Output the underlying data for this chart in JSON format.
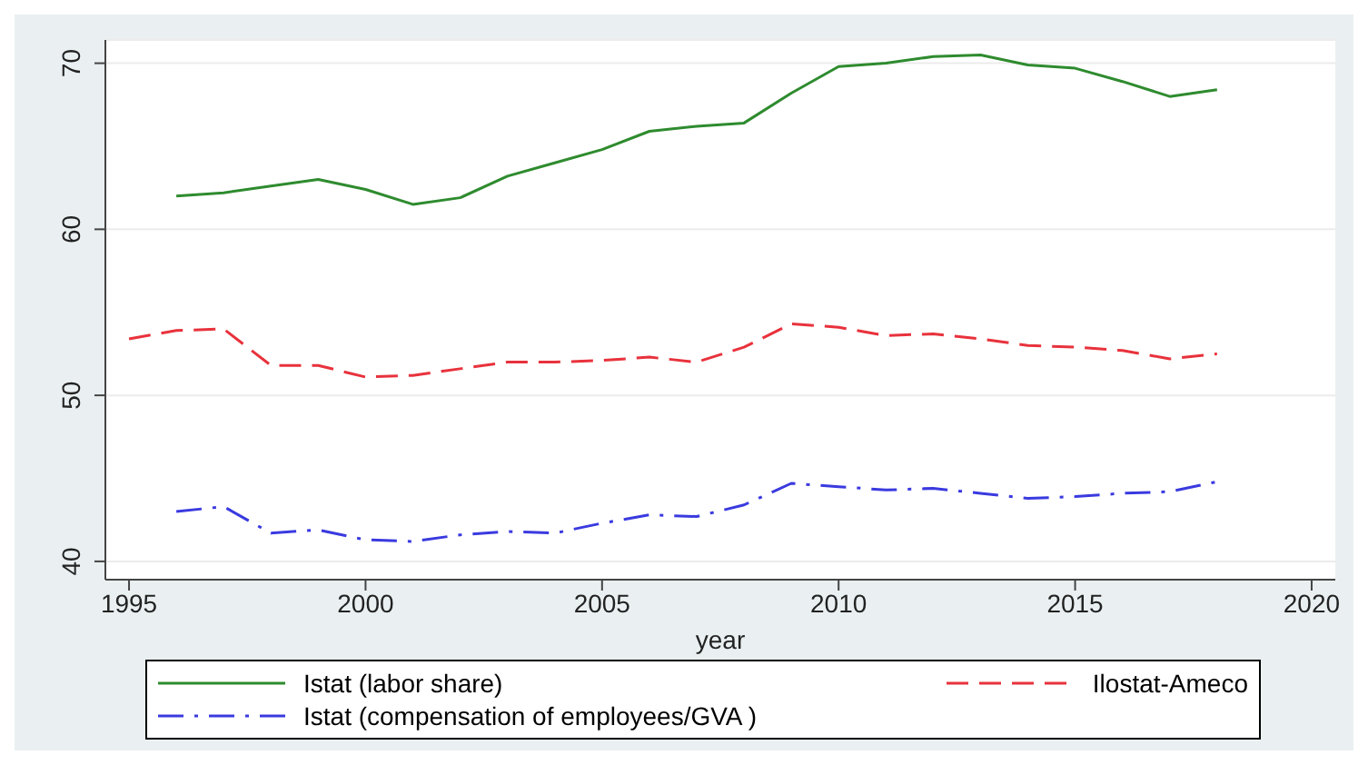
{
  "chart_data": {
    "type": "line",
    "xlabel": "year",
    "x": [
      1995,
      1996,
      1997,
      1998,
      1999,
      2000,
      2001,
      2002,
      2003,
      2004,
      2005,
      2006,
      2007,
      2008,
      2009,
      2010,
      2011,
      2012,
      2013,
      2014,
      2015,
      2016,
      2017,
      2018
    ],
    "series": [
      {
        "name": "Istat (labor share)",
        "color": "#2e8b2e",
        "line_style": "solid",
        "values": [
          null,
          62.0,
          62.2,
          62.6,
          63.0,
          62.4,
          61.5,
          61.9,
          63.2,
          64.0,
          64.8,
          65.9,
          66.2,
          66.4,
          68.2,
          69.8,
          70.0,
          70.4,
          70.5,
          69.9,
          69.7,
          68.9,
          68.0,
          68.4
        ]
      },
      {
        "name": "Ilostat-Ameco",
        "color": "#e8323c",
        "line_style": "dashed",
        "values": [
          53.4,
          53.9,
          54.0,
          51.8,
          51.8,
          51.1,
          51.2,
          51.6,
          52.0,
          52.0,
          52.1,
          52.3,
          52.0,
          52.9,
          54.3,
          54.1,
          53.6,
          53.7,
          53.4,
          53.0,
          52.9,
          52.7,
          52.2,
          52.5
        ]
      },
      {
        "name": "Istat (compensation of employees/GVA )",
        "color": "#3a3ae0",
        "line_style": "dashdot",
        "values": [
          null,
          43.0,
          43.3,
          41.7,
          41.9,
          41.3,
          41.2,
          41.6,
          41.8,
          41.7,
          42.3,
          42.8,
          42.7,
          43.4,
          44.7,
          44.5,
          44.3,
          44.4,
          44.1,
          43.8,
          43.9,
          44.1,
          44.2,
          44.8
        ]
      }
    ],
    "xlim": [
      1994.5,
      2020.5
    ],
    "xticks": [
      1995,
      2000,
      2005,
      2010,
      2015,
      2020
    ],
    "ylim": [
      38.9,
      71.4
    ],
    "yticks": [
      40,
      50,
      60,
      70
    ],
    "grid": "y",
    "legend": "bottom",
    "marker": "none"
  }
}
